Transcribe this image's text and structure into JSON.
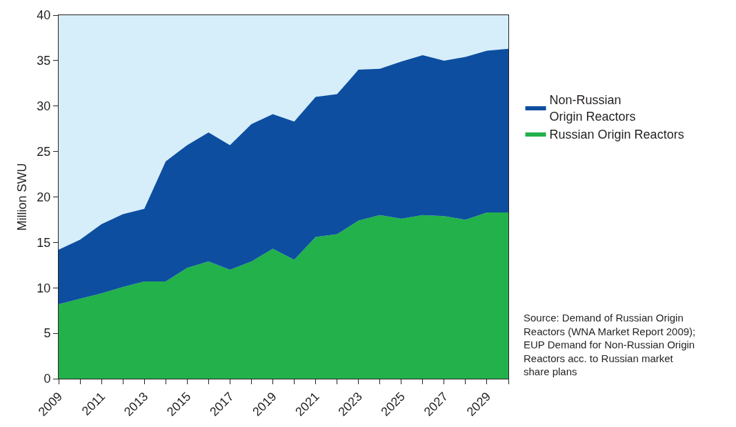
{
  "chart_data": {
    "type": "area",
    "stacked": true,
    "ylabel": "Million SWU",
    "x": [
      2009,
      2010,
      2011,
      2012,
      2013,
      2014,
      2015,
      2016,
      2017,
      2018,
      2019,
      2020,
      2021,
      2022,
      2023,
      2024,
      2025,
      2026,
      2027,
      2028,
      2029,
      2030
    ],
    "series": [
      {
        "name": "Russian Origin Reactors",
        "color": "#23b14b",
        "values": [
          8.2,
          8.8,
          9.4,
          10.1,
          10.7,
          10.7,
          12.2,
          12.9,
          12.0,
          12.9,
          14.3,
          13.1,
          15.6,
          15.9,
          17.4,
          18.0,
          17.6,
          18.0,
          17.9,
          17.5,
          18.3,
          18.3
        ]
      },
      {
        "name": "Non-Russian\nOrigin Reactors",
        "color": "#0d4ea0",
        "values": [
          6.0,
          6.5,
          7.6,
          8.0,
          8.0,
          13.2,
          13.5,
          14.2,
          13.7,
          15.1,
          14.8,
          15.2,
          15.4,
          15.4,
          16.6,
          16.1,
          17.3,
          17.6,
          17.1,
          17.9,
          17.8,
          18.0
        ]
      }
    ],
    "xlim": [
      2009,
      2030
    ],
    "xticks": [
      2009,
      {
        "value": 2010,
        "label": null
      },
      2011,
      {
        "value": 2012,
        "label": null
      },
      2013,
      {
        "value": 2014,
        "label": null
      },
      2015,
      {
        "value": 2016,
        "label": null
      },
      2017,
      {
        "value": 2018,
        "label": null
      },
      2019,
      {
        "value": 2020,
        "label": null
      },
      2021,
      {
        "value": 2022,
        "label": null
      },
      2023,
      {
        "value": 2024,
        "label": null
      },
      2025,
      {
        "value": 2026,
        "label": null
      },
      2027,
      {
        "value": 2028,
        "label": null
      },
      2029,
      {
        "value": 2030,
        "label": null
      }
    ],
    "ylim": [
      0,
      40
    ],
    "yticks": [
      0,
      5,
      10,
      15,
      20,
      25,
      30,
      35,
      40
    ],
    "grid": false,
    "legend": "right",
    "bands": [
      {
        "axis": "y",
        "from": 0,
        "to": 40,
        "color": "#d6edfa"
      }
    ],
    "annotations": [
      "Source: Demand of Russian Origin\nReactors (WNA Market Report 2009);\nEUP Demand for Non-Russian Origin\nReactors acc. to Russian market\nshare plans"
    ]
  }
}
